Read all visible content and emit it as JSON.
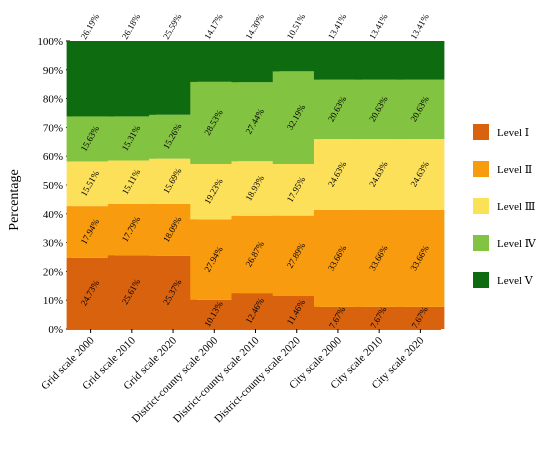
{
  "chart_data": {
    "type": "bar",
    "stacked": true,
    "ylabel": "Percentage",
    "ylim": [
      0,
      100
    ],
    "yticks": [
      "0%",
      "10%",
      "20%",
      "30%",
      "40%",
      "50%",
      "60%",
      "70%",
      "80%",
      "90%",
      "100%"
    ],
    "legend_position": "right",
    "categories": [
      "Grid scale 2000",
      "Grid scale 2010",
      "Grid scale 2020",
      "District-county scale 2000",
      "District-county scale 2010",
      "District-county scale 2020",
      "City scale 2000",
      "City scale 2010",
      "City scale 2020"
    ],
    "series": [
      {
        "name": "Level Ⅰ",
        "color": "#d9620f",
        "values": [
          24.73,
          25.61,
          25.37,
          10.13,
          12.46,
          11.46,
          7.67,
          7.67,
          7.67
        ],
        "labels": [
          "24.73%",
          "25.61%",
          "25.37%",
          "10.13%",
          "12.46%",
          "11.46%",
          "7.67%",
          "7.67%",
          "7.67%"
        ]
      },
      {
        "name": "Level Ⅱ",
        "color": "#f99b0f",
        "values": [
          17.94,
          17.79,
          18.09,
          27.94,
          26.87,
          27.89,
          33.66,
          33.66,
          33.66
        ],
        "labels": [
          "17.94%",
          "17.79%",
          "18.09%",
          "27.94%",
          "26.87%",
          "27.89%",
          "33.66%",
          "33.66%",
          "33.66%"
        ]
      },
      {
        "name": "Level Ⅲ",
        "color": "#fde05a",
        "values": [
          15.51,
          15.11,
          15.69,
          19.23,
          18.93,
          17.95,
          24.63,
          24.63,
          24.63
        ],
        "labels": [
          "15.51%",
          "15.11%",
          "15.69%",
          "19.23%",
          "18.93%",
          "17.95%",
          "24.63%",
          "24.63%",
          "24.63%"
        ]
      },
      {
        "name": "Level Ⅳ",
        "color": "#82c341",
        "values": [
          15.63,
          15.31,
          15.26,
          28.53,
          27.44,
          32.19,
          20.63,
          20.63,
          20.63
        ],
        "labels": [
          "15.63%",
          "15.31%",
          "15.26%",
          "28.53%",
          "27.44%",
          "32.19%",
          "20.63%",
          "20.63%",
          "20.63%"
        ]
      },
      {
        "name": "Level Ⅴ",
        "color": "#0f6b0f",
        "values": [
          26.19,
          26.18,
          25.59,
          14.17,
          14.3,
          10.51,
          13.41,
          13.41,
          13.41
        ],
        "labels": [
          "26.19%",
          "26.18%",
          "25.59%",
          "14.17%",
          "14.30%",
          "10.51%",
          "13.41%",
          "13.41%",
          "13.41%"
        ]
      }
    ]
  }
}
